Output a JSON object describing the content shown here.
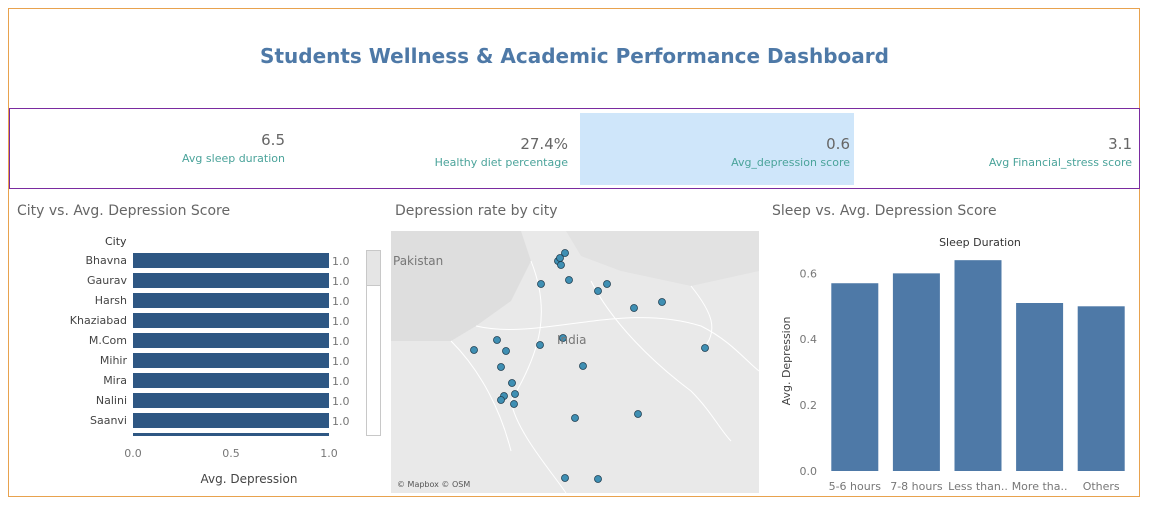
{
  "dashboard": {
    "title": "Students Wellness & Academic Performance Dashboard"
  },
  "kpis": [
    {
      "value": "6.5",
      "label": "Avg sleep duration"
    },
    {
      "value": "27.4%",
      "label": "Healthy diet percentage"
    },
    {
      "value": "0.6",
      "label": "Avg_depression score"
    },
    {
      "value": "3.1",
      "label": "Avg Financial_stress score"
    }
  ],
  "colors": {
    "bar_dark": "#2e5783",
    "bar_mid": "#4e79a7",
    "title": "#4e79a7",
    "kpi_label": "#4aa39a",
    "highlight": "#cfe6fa",
    "map_point": "#3f8fb3"
  },
  "city_panel": {
    "title": "City vs. Avg. Depression Score",
    "row_header": "City"
  },
  "map_panel": {
    "title": "Depression rate by city",
    "labels": {
      "country": "India",
      "neighbor": "Pakistan"
    },
    "credit": "© Mapbox © OSM"
  },
  "sleep_panel": {
    "title": "Sleep vs. Avg. Depression Score",
    "header": "Sleep Duration"
  },
  "chart_data": [
    {
      "type": "bar",
      "orientation": "horizontal",
      "title": "City vs. Avg. Depression Score",
      "categories": [
        "Bhavna",
        "Gaurav",
        "Harsh",
        "Khaziabad",
        "M.Com",
        "Mihir",
        "Mira",
        "Nalini",
        "Saanvi"
      ],
      "values": [
        1.0,
        1.0,
        1.0,
        1.0,
        1.0,
        1.0,
        1.0,
        1.0,
        1.0
      ],
      "data_labels": [
        "1.0",
        "1.0",
        "1.0",
        "1.0",
        "1.0",
        "1.0",
        "1.0",
        "1.0",
        "1.0"
      ],
      "xlabel": "Avg. Depression",
      "ylabel": "City",
      "xlim": [
        0,
        1.0
      ],
      "xticks": [
        "0.0",
        "0.5",
        "1.0"
      ]
    },
    {
      "type": "bar",
      "title": "Sleep vs. Avg. Depression Score",
      "categories": [
        "5-6 hours",
        "7-8 hours",
        "Less than..",
        "More tha..",
        "Others"
      ],
      "values": [
        0.57,
        0.6,
        0.64,
        0.51,
        0.5
      ],
      "xlabel": "Sleep Duration",
      "ylabel": "Avg. Depression",
      "ylim": [
        0,
        0.68
      ],
      "yticks": [
        "0.0",
        "0.2",
        "0.4",
        "0.6"
      ]
    }
  ]
}
